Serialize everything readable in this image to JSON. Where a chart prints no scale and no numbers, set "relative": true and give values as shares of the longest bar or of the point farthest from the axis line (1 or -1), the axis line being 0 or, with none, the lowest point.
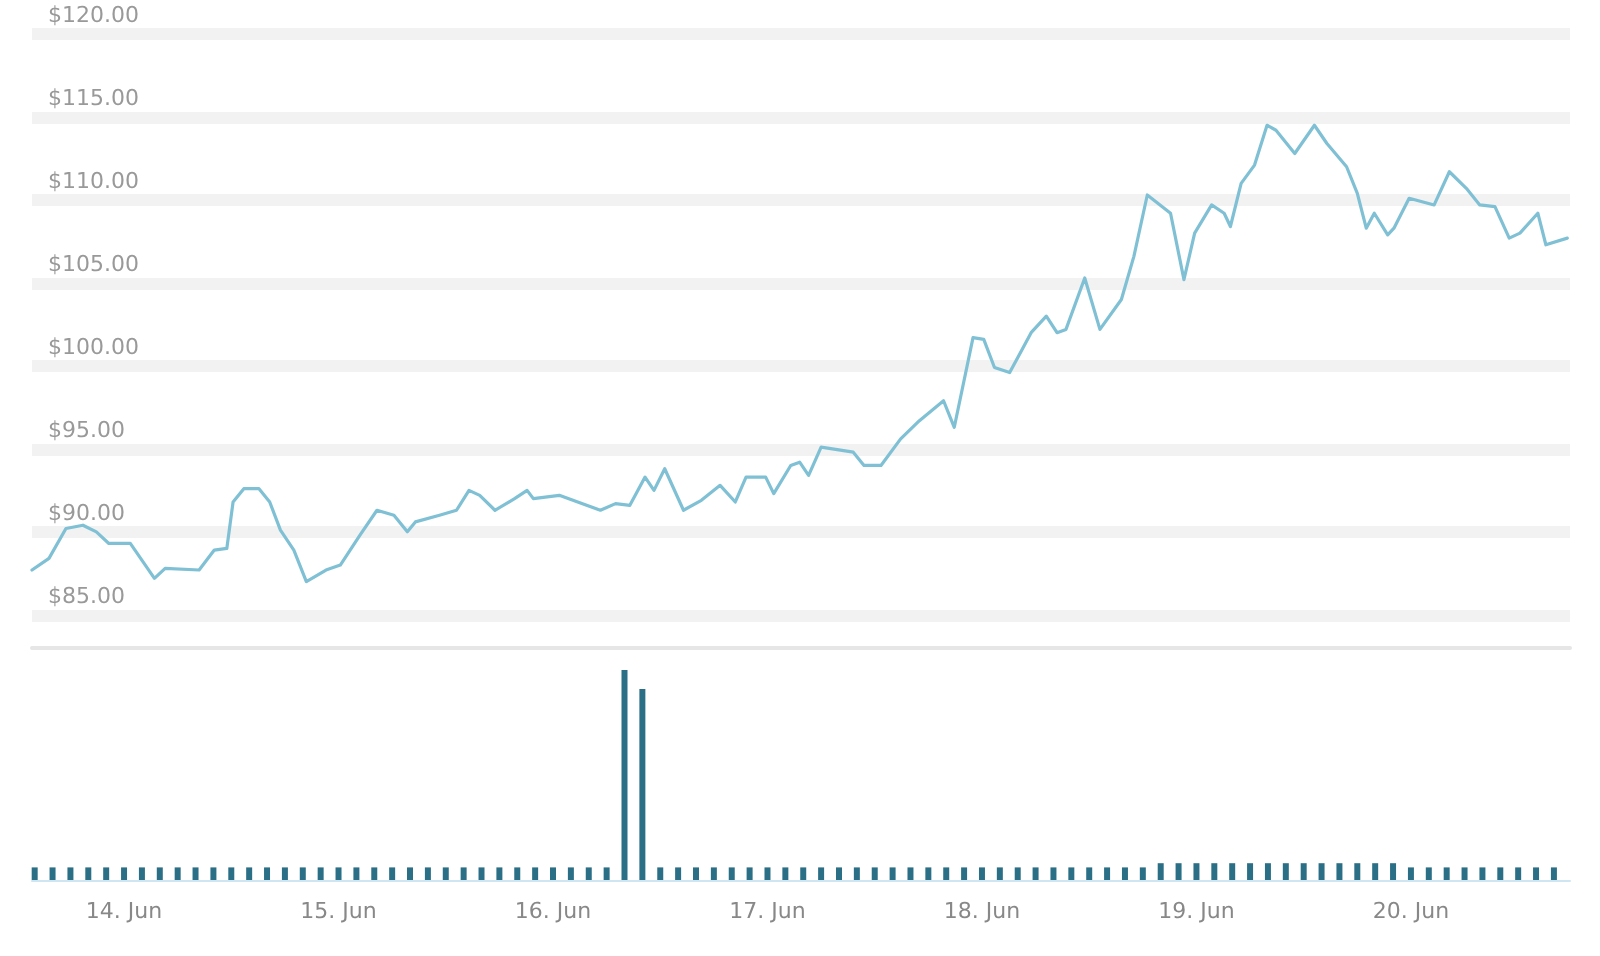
{
  "chart_data": [
    {
      "type": "line",
      "color": "#7fc0d4",
      "grid": "y",
      "tick_labels": "y",
      "marker": "none",
      "line_style": "solid",
      "x": [
        "--06-13T13:42",
        "--06-13T15:36",
        "--06-13T17:30",
        "--06-13T19:24",
        "--06-13T20:54",
        "--06-13T22:18",
        "--06-14T00:42",
        "--06-14T03:24",
        "--06-14T04:36",
        "--06-14T08:24",
        "--06-14T10:06",
        "--06-14T11:30",
        "--06-14T12:12",
        "--06-14T13:24",
        "--06-14T15:06",
        "--06-14T16:18",
        "--06-14T17:30",
        "--06-14T19:00",
        "--06-14T20:24",
        "--06-14T22:36",
        "--06-15T00:12",
        "--06-15T02:24",
        "--06-15T04:18",
        "--06-15T06:12",
        "--06-15T07:42",
        "--06-15T08:36",
        "--06-15T11:18",
        "--06-15T13:12",
        "--06-15T14:36",
        "--06-15T15:48",
        "--06-15T17:30",
        "--06-15T19:42",
        "--06-15T21:06",
        "--06-15T21:48",
        "--06-16T00:42",
        "--06-16T05:18",
        "--06-16T07:00",
        "--06-16T08:36",
        "--06-16T10:18",
        "--06-16T11:18",
        "--06-16T12:30",
        "--06-16T14:36",
        "--06-16T16:36",
        "--06-16T18:42",
        "--06-16T20:24",
        "--06-16T21:36",
        "--06-16T23:48",
        "--06-17T00:42",
        "--06-17T02:36",
        "--06-17T03:36",
        "--06-17T04:36",
        "--06-17T06:00",
        "--06-17T09:36",
        "--06-17T10:48",
        "--06-17T12:42",
        "--06-17T14:54",
        "--06-17T17:00",
        "--06-17T19:42",
        "--06-17T20:54",
        "--06-17T23:00",
        "--06-18T00:12",
        "--06-18T01:24",
        "--06-18T03:06",
        "--06-18T05:30",
        "--06-18T07:12",
        "--06-18T08:24",
        "--06-18T09:24",
        "--06-18T11:30",
        "--06-18T13:12",
        "--06-18T15:36",
        "--06-18T17:00",
        "--06-18T18:30",
        "--06-18T21:06",
        "--06-18T22:36",
        "--06-18T23:48",
        "--06-19T01:42",
        "--06-19T03:06",
        "--06-19T03:48",
        "--06-19T05:00",
        "--06-19T06:30",
        "--06-19T07:54",
        "--06-19T08:54",
        "--06-19T11:00",
        "--06-19T13:12",
        "--06-19T14:36",
        "--06-19T16:48",
        "--06-19T18:00",
        "--06-19T19:00",
        "--06-19T19:54",
        "--06-19T21:24",
        "--06-19T22:06",
        "--06-19T23:48",
        "--06-20T02:36",
        "--06-20T04:18",
        "--06-20T06:12",
        "--06-20T07:42",
        "--06-20T09:24",
        "--06-20T11:00",
        "--06-20T12:12",
        "--06-20T14:12",
        "--06-20T15:06",
        "--06-20T17:30"
      ],
      "values": [
        87.7,
        88.4,
        90.2,
        90.4,
        90.0,
        89.3,
        89.3,
        87.2,
        87.8,
        87.7,
        88.9,
        89.0,
        91.8,
        92.6,
        92.6,
        91.8,
        90.1,
        88.9,
        87.0,
        87.7,
        88.0,
        89.8,
        91.3,
        91.0,
        90.0,
        90.6,
        91.0,
        91.3,
        92.5,
        92.2,
        91.3,
        92.0,
        92.5,
        92.0,
        92.2,
        91.3,
        91.7,
        91.6,
        93.3,
        92.5,
        93.8,
        91.3,
        91.9,
        92.8,
        91.8,
        93.3,
        93.3,
        92.3,
        94.0,
        94.2,
        93.4,
        95.1,
        94.8,
        94.0,
        94.0,
        95.6,
        96.7,
        97.9,
        96.3,
        101.7,
        101.6,
        99.9,
        99.6,
        102.0,
        103.0,
        102.0,
        102.2,
        105.3,
        102.2,
        104.0,
        106.6,
        110.3,
        109.2,
        105.2,
        108.0,
        109.7,
        109.2,
        108.4,
        111.0,
        112.1,
        114.5,
        114.2,
        112.8,
        114.5,
        113.4,
        112.0,
        110.4,
        108.3,
        109.2,
        107.9,
        108.3,
        110.1,
        109.7,
        111.7,
        110.7,
        109.7,
        109.6,
        107.7,
        108.0,
        109.2,
        107.3,
        107.7
      ],
      "xlim": [
        "--06-13T13:42",
        "--06-20T17:48"
      ],
      "ylim": [
        83,
        120
      ],
      "yticks": [
        {
          "value": 85,
          "label": "$85.00"
        },
        {
          "value": 90,
          "label": "$90.00"
        },
        {
          "value": 95,
          "label": "$95.00"
        },
        {
          "value": 100,
          "label": "$100.00"
        },
        {
          "value": 105,
          "label": "$105.00"
        },
        {
          "value": 110,
          "label": "$110.00"
        },
        {
          "value": 115,
          "label": "$115.00"
        },
        {
          "value": 120,
          "label": "$120.00"
        }
      ]
    },
    {
      "type": "bar",
      "relative": true,
      "color": "#2b6f87",
      "tick_labels": "x",
      "x": [
        "--06-13T14:00",
        "--06-13T16:00",
        "--06-13T18:00",
        "--06-13T20:00",
        "--06-13T22:00",
        "--06-14T00:00",
        "--06-14T02:00",
        "--06-14T04:00",
        "--06-14T06:00",
        "--06-14T08:00",
        "--06-14T10:00",
        "--06-14T12:00",
        "--06-14T14:00",
        "--06-14T16:00",
        "--06-14T18:00",
        "--06-14T20:00",
        "--06-14T22:00",
        "--06-15T00:00",
        "--06-15T02:00",
        "--06-15T04:00",
        "--06-15T06:00",
        "--06-15T08:00",
        "--06-15T10:00",
        "--06-15T12:00",
        "--06-15T14:00",
        "--06-15T16:00",
        "--06-15T18:00",
        "--06-15T20:00",
        "--06-15T22:00",
        "--06-16T00:00",
        "--06-16T02:00",
        "--06-16T04:00",
        "--06-16T06:00",
        "--06-16T08:00",
        "--06-16T10:00",
        "--06-16T12:00",
        "--06-16T14:00",
        "--06-16T16:00",
        "--06-16T18:00",
        "--06-16T20:00",
        "--06-16T22:00",
        "--06-17T00:00",
        "--06-17T02:00",
        "--06-17T04:00",
        "--06-17T06:00",
        "--06-17T08:00",
        "--06-17T10:00",
        "--06-17T12:00",
        "--06-17T14:00",
        "--06-17T16:00",
        "--06-17T18:00",
        "--06-17T20:00",
        "--06-17T22:00",
        "--06-18T00:00",
        "--06-18T02:00",
        "--06-18T04:00",
        "--06-18T06:00",
        "--06-18T08:00",
        "--06-18T10:00",
        "--06-18T12:00",
        "--06-18T14:00",
        "--06-18T16:00",
        "--06-18T18:00",
        "--06-18T20:00",
        "--06-18T22:00",
        "--06-19T00:00",
        "--06-19T02:00",
        "--06-19T04:00",
        "--06-19T06:00",
        "--06-19T08:00",
        "--06-19T10:00",
        "--06-19T12:00",
        "--06-19T14:00",
        "--06-19T16:00",
        "--06-19T18:00",
        "--06-19T20:00",
        "--06-19T22:00",
        "--06-20T00:00",
        "--06-20T02:00",
        "--06-20T04:00",
        "--06-20T06:00",
        "--06-20T08:00",
        "--06-20T10:00",
        "--06-20T12:00",
        "--06-20T14:00",
        "--06-20T16:00"
      ],
      "values": [
        0.06,
        0.06,
        0.06,
        0.06,
        0.06,
        0.06,
        0.06,
        0.06,
        0.06,
        0.06,
        0.06,
        0.06,
        0.06,
        0.06,
        0.06,
        0.06,
        0.06,
        0.06,
        0.06,
        0.06,
        0.06,
        0.06,
        0.06,
        0.06,
        0.06,
        0.06,
        0.06,
        0.06,
        0.06,
        0.06,
        0.06,
        0.06,
        0.06,
        1,
        0.91,
        0.06,
        0.06,
        0.06,
        0.06,
        0.06,
        0.06,
        0.06,
        0.06,
        0.06,
        0.06,
        0.06,
        0.06,
        0.06,
        0.06,
        0.06,
        0.06,
        0.06,
        0.06,
        0.06,
        0.06,
        0.06,
        0.06,
        0.06,
        0.06,
        0.06,
        0.06,
        0.06,
        0.06,
        0.08,
        0.08,
        0.08,
        0.08,
        0.08,
        0.08,
        0.08,
        0.08,
        0.08,
        0.08,
        0.08,
        0.08,
        0.08,
        0.08,
        0.06,
        0.06,
        0.06,
        0.06,
        0.06,
        0.06,
        0.06,
        0.06,
        0.06
      ],
      "xlim": [
        "--06-13T13:42",
        "--06-20T17:48"
      ],
      "xticks": [
        {
          "value": "--06-14",
          "label": "14. Jun"
        },
        {
          "value": "--06-15",
          "label": "15. Jun"
        },
        {
          "value": "--06-16",
          "label": "16. Jun"
        },
        {
          "value": "--06-17",
          "label": "17. Jun"
        },
        {
          "value": "--06-18",
          "label": "18. Jun"
        },
        {
          "value": "--06-19",
          "label": "19. Jun"
        },
        {
          "value": "--06-20",
          "label": "20. Jun"
        }
      ]
    }
  ]
}
